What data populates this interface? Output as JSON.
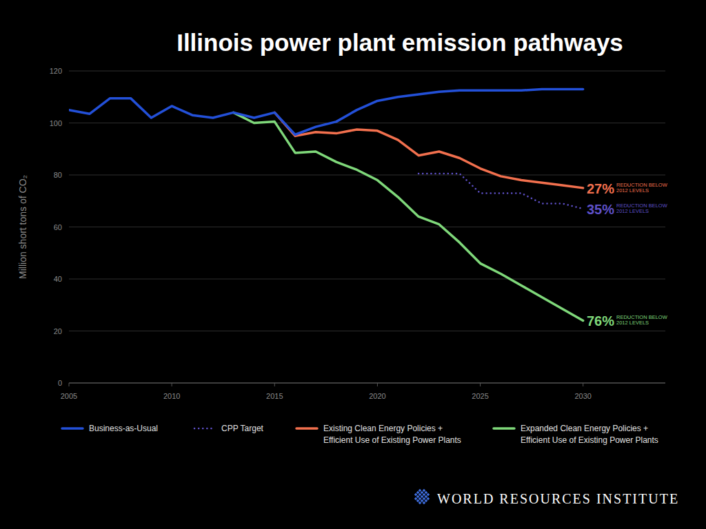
{
  "chart_data": {
    "type": "line",
    "title": "Illinois power plant emission pathways",
    "y_label": "Million short tons of CO₂",
    "source": "WORLD RESOURCES INSTITUTE",
    "x": [
      2005,
      2006,
      2007,
      2008,
      2009,
      2010,
      2011,
      2012,
      2013,
      2014,
      2015,
      2016,
      2017,
      2018,
      2019,
      2020,
      2021,
      2022,
      2023,
      2024,
      2025,
      2026,
      2027,
      2028,
      2029,
      2030
    ],
    "xlim": [
      2005,
      2034
    ],
    "xticks": [
      2005,
      2010,
      2015,
      2020,
      2025,
      2030
    ],
    "ylim": [
      0,
      120
    ],
    "yticks": [
      0,
      20,
      40,
      60,
      80,
      100,
      120
    ],
    "grid": true,
    "legend": "bottom",
    "series": [
      {
        "name": "Business-as-Usual",
        "color": "#2350d8",
        "line_style": "solid",
        "values": [
          105,
          103.5,
          109.5,
          109.5,
          102,
          106.5,
          103,
          102,
          104,
          102,
          104,
          95.5,
          98.5,
          100.5,
          105,
          108.5,
          110,
          111,
          112,
          112.5,
          112.5,
          112.5,
          112.5,
          113,
          113,
          113
        ]
      },
      {
        "name": "CPP Target",
        "color": "#5e50c8",
        "line_style": "dotted",
        "values": [
          null,
          null,
          null,
          null,
          null,
          null,
          null,
          null,
          null,
          null,
          null,
          null,
          null,
          null,
          null,
          null,
          null,
          80.5,
          80.5,
          80.5,
          73,
          73,
          73,
          69,
          69,
          67
        ]
      },
      {
        "name": "Existing Clean Energy Policies + Efficient Use of Existing Power Plants",
        "color": "#f2704e",
        "line_style": "solid",
        "values": [
          null,
          null,
          null,
          null,
          null,
          null,
          null,
          null,
          null,
          null,
          104,
          95,
          96.5,
          96,
          97.5,
          97,
          93.5,
          87.5,
          89,
          86.5,
          82.5,
          79.5,
          78,
          77,
          76,
          75
        ]
      },
      {
        "name": "Expanded Clean Energy Policies + Efficient Use of Existing Power Plants",
        "color": "#7fd87a",
        "line_style": "solid",
        "values": [
          null,
          null,
          null,
          null,
          null,
          null,
          null,
          null,
          104,
          100,
          100.5,
          88.5,
          89,
          85,
          82,
          78,
          71.5,
          64,
          61,
          54,
          46,
          42,
          37.5,
          33,
          28.5,
          24
        ]
      }
    ],
    "annotations": [
      {
        "text": "27%",
        "lines": [
          "REDUCTION BELOW",
          "2012 LEVELS"
        ],
        "series": 2
      },
      {
        "text": "35%",
        "lines": [
          "REDUCTION BELOW",
          "2012 LEVELS"
        ],
        "series": 1
      },
      {
        "text": "76%",
        "lines": [
          "REDUCTION BELOW",
          "2012 LEVELS"
        ],
        "series": 3
      }
    ]
  }
}
